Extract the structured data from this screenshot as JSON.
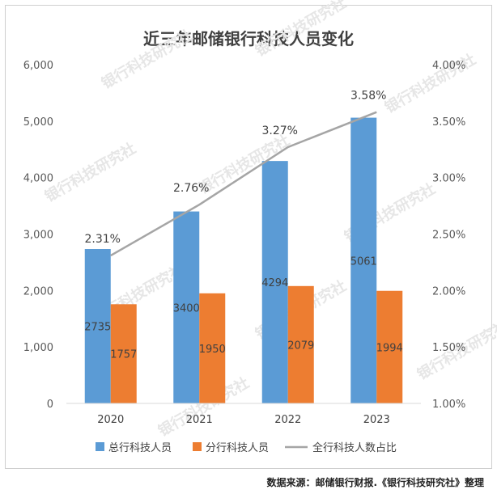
{
  "chart_data": {
    "type": "bar",
    "title": "近三年邮储银行科技人员变化",
    "categories": [
      "2020",
      "2021",
      "2022",
      "2023"
    ],
    "series": [
      {
        "name": "总行科技人员",
        "kind": "bar",
        "axis": "left",
        "color": "#5b9bd5",
        "values": [
          2735,
          3400,
          4294,
          5061
        ],
        "labels": [
          "2735",
          "3400",
          "4294",
          "5061"
        ]
      },
      {
        "name": "分行科技人员",
        "kind": "bar",
        "axis": "left",
        "color": "#ed7d31",
        "values": [
          1757,
          1950,
          2079,
          1994
        ],
        "labels": [
          "1757",
          "1950",
          "2079",
          "1994"
        ]
      },
      {
        "name": "全行科技人数占比",
        "kind": "line",
        "axis": "right",
        "color": "#a5a5a5",
        "values": [
          2.31,
          2.76,
          3.27,
          3.58
        ],
        "labels": [
          "2.31%",
          "2.76%",
          "3.27%",
          "3.58%"
        ]
      }
    ],
    "ylim": [
      0,
      6000
    ],
    "yticks": [
      "0",
      "1,000",
      "2,000",
      "3,000",
      "4,000",
      "5,000",
      "6,000"
    ],
    "y2lim": [
      1.0,
      4.0
    ],
    "y2ticks": [
      "1.00%",
      "1.50%",
      "2.00%",
      "2.50%",
      "3.00%",
      "3.50%",
      "4.00%"
    ],
    "grid": false,
    "legend": "bottom"
  },
  "source": "数据来源：邮储银行财报.《银行科技研究社》整理",
  "watermark": "银行科技研究社"
}
